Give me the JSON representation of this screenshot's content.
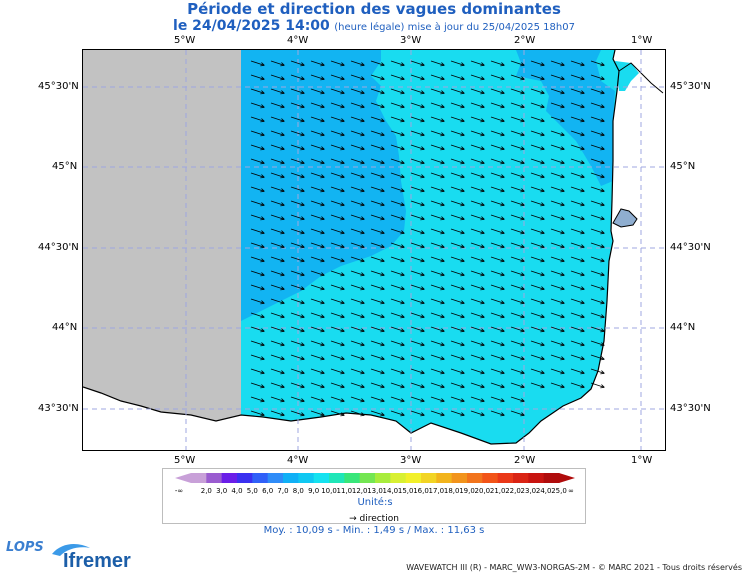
{
  "title": {
    "line1": "Période et direction des vagues dominantes",
    "date_label": "le 24/04/2025 14:00",
    "note": "(heure légale) mise à jour du 25/04/2025 18h07"
  },
  "map": {
    "lon_labels": [
      "5°W",
      "4°W",
      "3°W",
      "2°W",
      "1°W"
    ],
    "lat_labels": [
      "45°30'N",
      "45°N",
      "44°30'N",
      "44°N",
      "43°30'N"
    ],
    "colors": {
      "land": "#c2c2c2",
      "period_10": "#12b4f2",
      "period_11": "#19dcf0",
      "coast": "#000000",
      "grid": "#9fa7e0"
    },
    "arrow_direction_note": "direction"
  },
  "legend": {
    "ticks": [
      "-∞",
      "2,0",
      "3,0",
      "4,0",
      "5,0",
      "6,0",
      "7,0",
      "8,0",
      "9,0",
      "10,0",
      "11,0",
      "12,0",
      "13,0",
      "14,0",
      "15,0",
      "16,0",
      "17,0",
      "18,0",
      "19,0",
      "20,0",
      "21,0",
      "22,0",
      "23,0",
      "24,0",
      "25,0",
      "∞"
    ],
    "colors": [
      "#c8a0d8",
      "#9a5cd0",
      "#6a1ee8",
      "#3a30f0",
      "#3060f8",
      "#2f8cf8",
      "#10b0f6",
      "#10c8f2",
      "#15e2f0",
      "#1fe6b8",
      "#38e67a",
      "#74e652",
      "#a8ec3c",
      "#d8f032",
      "#f2f02a",
      "#f2d424",
      "#f2b41c",
      "#f2941c",
      "#f2741c",
      "#f25418",
      "#ea3818",
      "#da2414",
      "#c81410",
      "#b00c0c"
    ],
    "unit": "Unité:s",
    "direction_label": "direction"
  },
  "stats": "Moy. : 10,09 s   -   Min. : 1,49 s / Max. : 11,63 s",
  "footer": "WAVEWATCH III (R) - MARC_WW3-NORGAS-2M - © MARC 2021 - Tous droits réservés",
  "logos": {
    "lops": "LOPS",
    "ifremer": "Ifremer"
  }
}
